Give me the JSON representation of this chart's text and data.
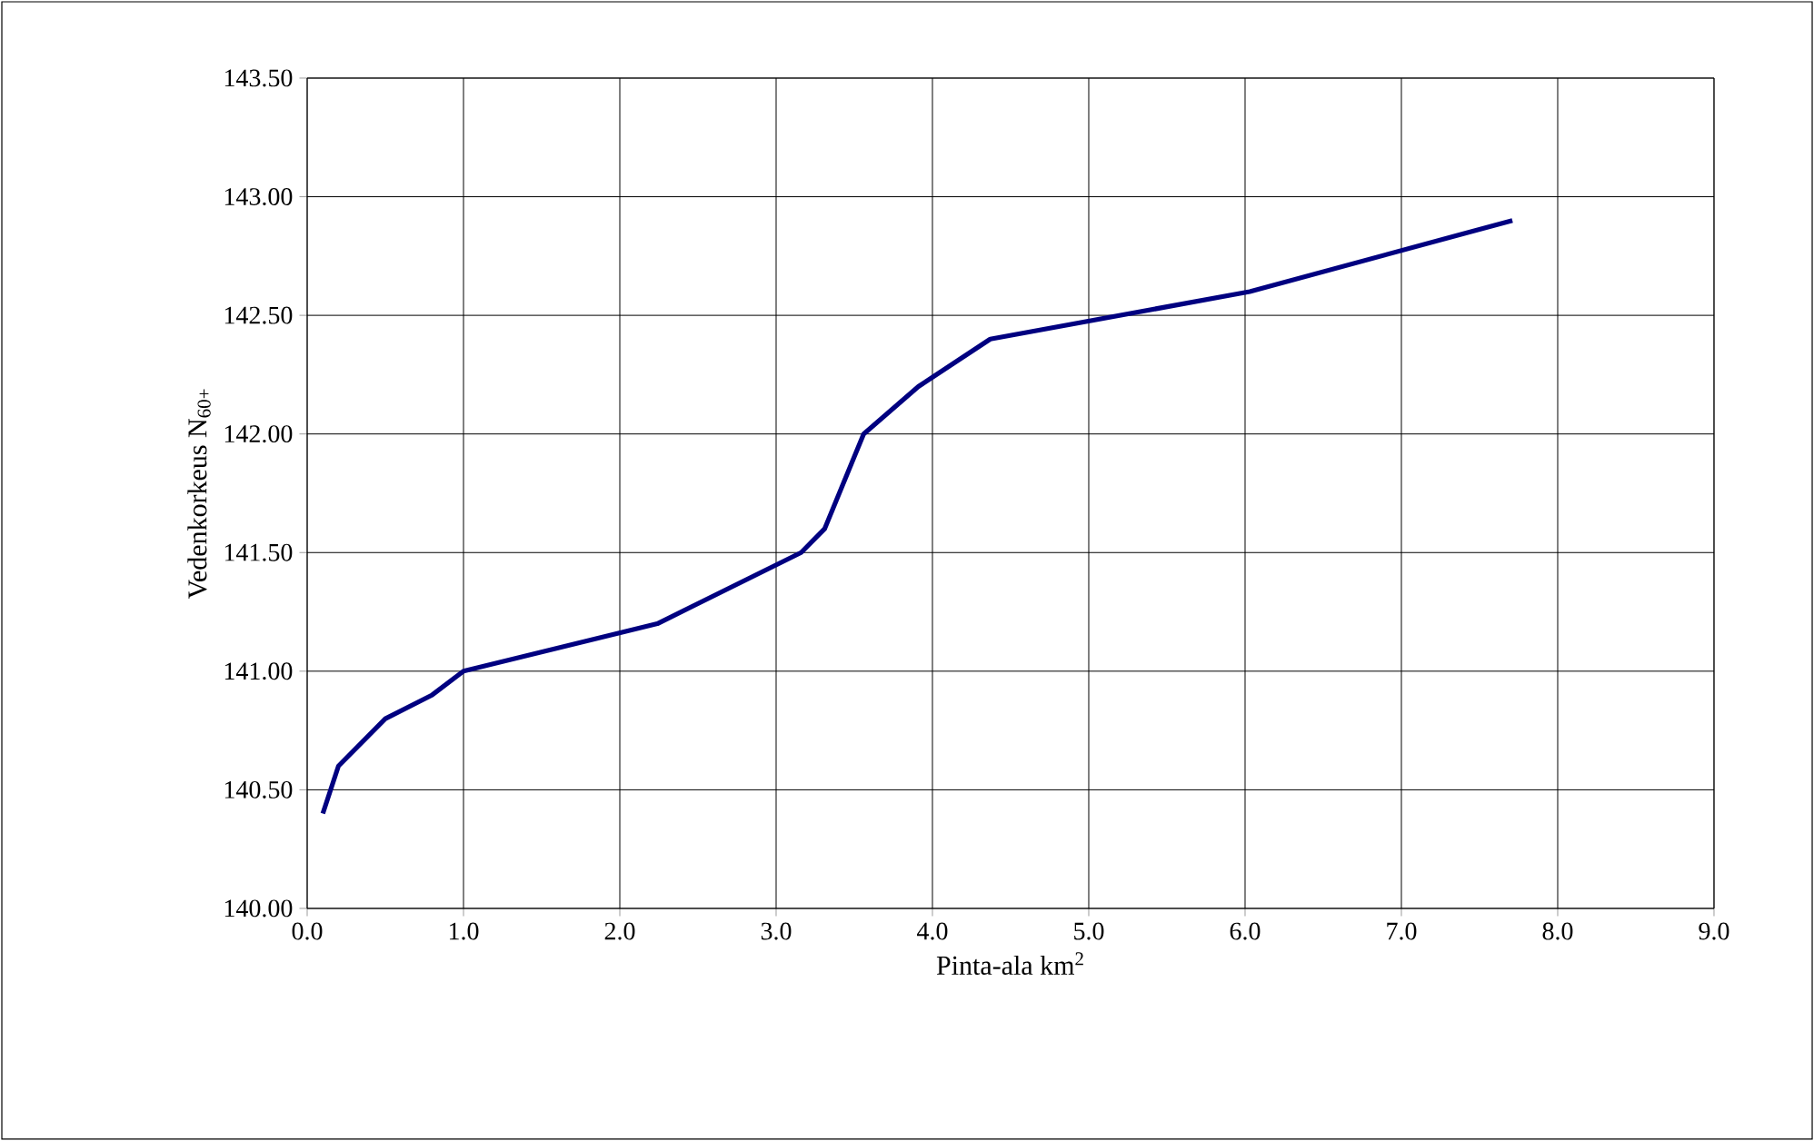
{
  "chart_data": {
    "type": "line",
    "xlabel": "Pinta-ala km$^{2}$",
    "ylabel": "Vedenkorkeus N$_{60+}$",
    "x": [
      0.1,
      0.2,
      0.5,
      0.8,
      1.0,
      2.24,
      3.16,
      3.31,
      3.56,
      3.91,
      4.37,
      6.03,
      7.71
    ],
    "series": [
      {
        "color": "#000080",
        "values": [
          140.4,
          140.6,
          140.8,
          140.9,
          141.0,
          141.2,
          141.5,
          141.6,
          142.0,
          142.2,
          142.4,
          142.6,
          142.9
        ]
      }
    ],
    "xlim": [
      0,
      9
    ],
    "ylim": [
      140,
      143.5
    ],
    "xticks": [
      {
        "value": 0,
        "label": "0.0"
      },
      {
        "value": 1,
        "label": "1.0"
      },
      {
        "value": 2,
        "label": "2.0"
      },
      {
        "value": 3,
        "label": "3.0"
      },
      {
        "value": 4,
        "label": "4.0"
      },
      {
        "value": 5,
        "label": "5.0"
      },
      {
        "value": 6,
        "label": "6.0"
      },
      {
        "value": 7,
        "label": "7.0"
      },
      {
        "value": 8,
        "label": "8.0"
      },
      {
        "value": 9,
        "label": "9.0"
      }
    ],
    "yticks": [
      {
        "value": 140,
        "label": "140.00"
      },
      {
        "value": 140.5,
        "label": "140.50"
      },
      {
        "value": 141,
        "label": "141.00"
      },
      {
        "value": 141.5,
        "label": "141.50"
      },
      {
        "value": 142,
        "label": "142.00"
      },
      {
        "value": 142.5,
        "label": "142.50"
      },
      {
        "value": 143,
        "label": "143.00"
      },
      {
        "value": 143.5,
        "label": "143.50"
      }
    ],
    "grid": true,
    "marker": "none",
    "line_style": "solid"
  }
}
